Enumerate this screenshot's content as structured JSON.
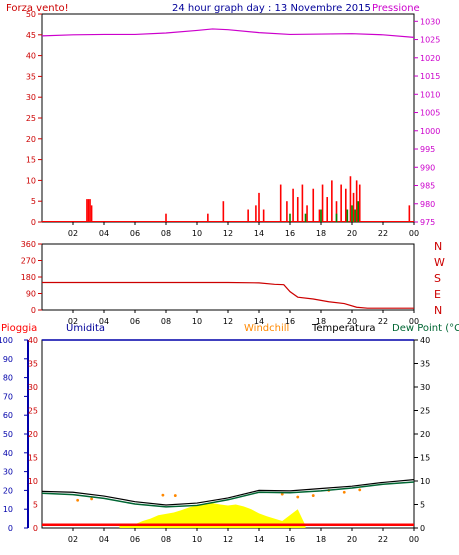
{
  "header": {
    "left_label": "Forza vento!",
    "title": "24 hour graph day : 13 Novembre 2015",
    "right_label": "Pressione"
  },
  "middle": {
    "compass": [
      "N",
      "W",
      "S",
      "E",
      "N"
    ]
  },
  "bottom": {
    "legend": {
      "pioggia": "Pioggia",
      "umidita": "Umidita",
      "windchill": "Windchill",
      "temperatura": "Temperatura",
      "dewpoint": "Dew Point (°C"
    }
  },
  "colors": {
    "wind": "#ff0000",
    "pressure": "#cc00cc",
    "direction": "#cc0000",
    "humidity": "#0000aa",
    "temperature": "#000000",
    "dewpoint": "#006633",
    "windchill": "#ff8800",
    "sun": "#ffff00",
    "rain": "#ff0000",
    "grid": "#000000"
  },
  "chart_data": [
    {
      "type": "bar",
      "name": "wind",
      "x_ticks": [
        "02",
        "04",
        "06",
        "08",
        "10",
        "12",
        "14",
        "16",
        "18",
        "20",
        "22",
        "00"
      ],
      "y_left_ticks": [
        0,
        5,
        10,
        15,
        20,
        25,
        30,
        35,
        40,
        45,
        50
      ],
      "y_right_ticks": [
        975,
        980,
        985,
        990,
        995,
        1000,
        1005,
        1010,
        1015,
        1020,
        1025,
        1030
      ],
      "ylim_left": [
        0,
        50
      ],
      "ylim_right": [
        975,
        1032
      ],
      "pressure_series": [
        [
          0,
          1026.0
        ],
        [
          2,
          1026.3
        ],
        [
          4,
          1026.4
        ],
        [
          6,
          1026.4
        ],
        [
          8,
          1026.8
        ],
        [
          10,
          1027.5
        ],
        [
          11,
          1027.9
        ],
        [
          12,
          1027.7
        ],
        [
          14,
          1026.9
        ],
        [
          16,
          1026.4
        ],
        [
          18,
          1026.5
        ],
        [
          20,
          1026.6
        ],
        [
          22,
          1026.3
        ],
        [
          24,
          1025.6
        ]
      ],
      "wind_bars": [
        [
          2.9,
          5.5
        ],
        [
          3.0,
          5.5
        ],
        [
          3.1,
          5.5
        ],
        [
          3.2,
          4
        ],
        [
          8.0,
          2
        ],
        [
          10.7,
          2
        ],
        [
          11.7,
          5
        ],
        [
          13.3,
          3
        ],
        [
          13.8,
          4
        ],
        [
          14.0,
          7
        ],
        [
          14.3,
          3
        ],
        [
          15.4,
          9
        ],
        [
          15.8,
          5
        ],
        [
          16.2,
          8
        ],
        [
          16.5,
          6
        ],
        [
          16.8,
          9
        ],
        [
          17.1,
          4
        ],
        [
          17.5,
          8
        ],
        [
          17.9,
          3
        ],
        [
          18.1,
          9
        ],
        [
          18.4,
          6
        ],
        [
          18.7,
          10
        ],
        [
          19.0,
          5
        ],
        [
          19.3,
          9
        ],
        [
          19.6,
          8
        ],
        [
          19.9,
          11
        ],
        [
          20.1,
          7
        ],
        [
          20.3,
          10
        ],
        [
          20.5,
          9
        ],
        [
          23.7,
          4
        ]
      ],
      "gust_bars": [
        [
          16.0,
          2
        ],
        [
          17.0,
          2
        ],
        [
          18.0,
          3
        ],
        [
          19.0,
          2
        ],
        [
          19.7,
          3
        ],
        [
          20.0,
          4
        ],
        [
          20.2,
          3
        ],
        [
          20.4,
          5
        ]
      ]
    },
    {
      "type": "line",
      "name": "wind_direction",
      "x_ticks": [
        "02",
        "04",
        "06",
        "08",
        "10",
        "12",
        "14",
        "16",
        "18",
        "20",
        "22",
        "00"
      ],
      "y_ticks": [
        0,
        90,
        180,
        270,
        360
      ],
      "ylim": [
        0,
        360
      ],
      "series": [
        [
          0,
          150
        ],
        [
          3,
          150
        ],
        [
          6,
          150
        ],
        [
          9,
          150
        ],
        [
          12,
          150
        ],
        [
          14,
          148
        ],
        [
          15,
          140
        ],
        [
          15.6,
          138
        ],
        [
          16.0,
          100
        ],
        [
          16.5,
          70
        ],
        [
          17.5,
          60
        ],
        [
          18.5,
          45
        ],
        [
          19.5,
          35
        ],
        [
          20.3,
          15
        ],
        [
          21,
          10
        ],
        [
          24,
          10
        ]
      ]
    },
    {
      "type": "line",
      "name": "humidity_temperature",
      "x_ticks": [
        "02",
        "04",
        "06",
        "08",
        "10",
        "12",
        "14",
        "16",
        "18",
        "20",
        "22",
        "00"
      ],
      "y_left_ticks": [
        0,
        10,
        20,
        30,
        40,
        50,
        60,
        70,
        80,
        90,
        100
      ],
      "y_right_ticks": [
        0,
        5,
        10,
        15,
        20,
        25,
        30,
        35,
        40
      ],
      "ylim_left": [
        0,
        100
      ],
      "ylim_right": [
        0,
        40
      ],
      "humidity": [
        [
          0,
          100
        ],
        [
          24,
          100
        ]
      ],
      "temperature": [
        [
          0,
          7.8
        ],
        [
          2,
          7.6
        ],
        [
          4,
          6.8
        ],
        [
          6,
          5.6
        ],
        [
          8,
          4.9
        ],
        [
          10,
          5.3
        ],
        [
          12,
          6.4
        ],
        [
          14,
          8.0
        ],
        [
          16,
          7.9
        ],
        [
          18,
          8.4
        ],
        [
          20,
          8.9
        ],
        [
          22,
          9.7
        ],
        [
          24,
          10.3
        ]
      ],
      "dewpoint": [
        [
          0,
          7.4
        ],
        [
          2,
          7.1
        ],
        [
          4,
          6.3
        ],
        [
          6,
          5.1
        ],
        [
          8,
          4.5
        ],
        [
          10,
          4.8
        ],
        [
          12,
          6.0
        ],
        [
          14,
          7.6
        ],
        [
          16,
          7.5
        ],
        [
          18,
          7.9
        ],
        [
          20,
          8.5
        ],
        [
          22,
          9.3
        ],
        [
          24,
          9.8
        ]
      ],
      "windchill": [
        [
          2.3,
          5.9
        ],
        [
          3.2,
          6.2
        ],
        [
          7.8,
          7.0
        ],
        [
          8.6,
          6.9
        ],
        [
          15.5,
          7.2
        ],
        [
          16.5,
          6.6
        ],
        [
          17.5,
          6.9
        ],
        [
          18.5,
          8.0
        ],
        [
          19.5,
          7.6
        ],
        [
          20.5,
          8.1
        ]
      ],
      "sun": [
        [
          5.0,
          0.6
        ],
        [
          6.0,
          0.8
        ],
        [
          6.5,
          1.5
        ],
        [
          7.0,
          2.0
        ],
        [
          7.5,
          2.7
        ],
        [
          8.0,
          3.0
        ],
        [
          8.5,
          3.3
        ],
        [
          9.0,
          3.8
        ],
        [
          9.5,
          4.4
        ],
        [
          10.0,
          4.8
        ],
        [
          10.5,
          5.2
        ],
        [
          11.0,
          5.3
        ],
        [
          11.5,
          5.0
        ],
        [
          12.0,
          4.8
        ],
        [
          12.5,
          5.0
        ],
        [
          13.0,
          4.6
        ],
        [
          13.5,
          4.0
        ],
        [
          14.0,
          3.1
        ],
        [
          14.5,
          2.5
        ],
        [
          15.0,
          2.0
        ],
        [
          15.5,
          1.5
        ],
        [
          16.5,
          4.0
        ],
        [
          17.0,
          0.5
        ]
      ],
      "rain": [
        [
          0,
          0.7
        ],
        [
          24,
          0.7
        ]
      ]
    }
  ]
}
